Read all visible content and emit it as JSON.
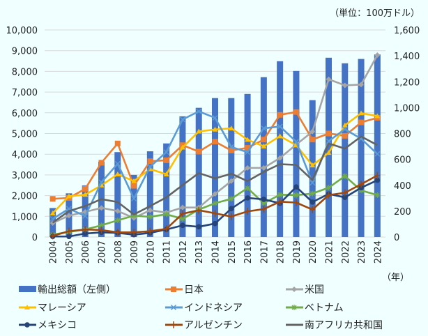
{
  "chart_data": {
    "type": "bar+line",
    "unit_label": "（単位：100万ドル）",
    "xlabel": "（年）",
    "categories": [
      "2004",
      "2005",
      "2006",
      "2007",
      "2008",
      "2009",
      "2010",
      "2011",
      "2012",
      "2013",
      "2014",
      "2015",
      "2016",
      "2017",
      "2018",
      "2019",
      "2020",
      "2021",
      "2022",
      "2023",
      "2024"
    ],
    "left_axis": {
      "range": [
        0,
        10000
      ],
      "ticks": [
        "0",
        "1,000",
        "2,000",
        "3,000",
        "4,000",
        "5,000",
        "6,000",
        "7,000",
        "8,000",
        "9,000",
        "10,000"
      ]
    },
    "right_axis": {
      "range": [
        0,
        1600
      ],
      "ticks": [
        "0",
        "200",
        "400",
        "600",
        "800",
        "1,000",
        "1,200",
        "1,400",
        "1,600"
      ]
    },
    "grid": true,
    "legend_position": "bottom",
    "bar_series": {
      "name": "輸出総額（左側）",
      "axis": "left",
      "color": "#4472c4",
      "values": [
        1400,
        2110,
        2490,
        3640,
        4100,
        3000,
        4140,
        4520,
        5830,
        6240,
        6710,
        6710,
        6910,
        7720,
        8490,
        8020,
        6610,
        8660,
        8390,
        8600,
        8820
      ]
    },
    "series": [
      {
        "name": "日本",
        "color": "#ed7d31",
        "marker": "square",
        "values": [
          295,
          302,
          372,
          574,
          723,
          396,
          586,
          593,
          710,
          660,
          737,
          669,
          689,
          753,
          944,
          966,
          753,
          800,
          782,
          886,
          921
        ]
      },
      {
        "name": "米国",
        "color": "#a5a5a5",
        "marker": "diamond",
        "values": [
          108,
          165,
          194,
          225,
          201,
          147,
          207,
          189,
          228,
          228,
          333,
          432,
          534,
          534,
          611,
          714,
          815,
          1219,
          1172,
          1178,
          1406
        ]
      },
      {
        "name": "マレーシア",
        "color": "#ffc000",
        "marker": "triangle",
        "values": [
          183,
          315,
          327,
          399,
          485,
          432,
          525,
          485,
          692,
          816,
          831,
          840,
          752,
          701,
          779,
          710,
          554,
          651,
          863,
          957,
          935
        ]
      },
      {
        "name": "インドネシア",
        "color": "#5b9bd5",
        "marker": "x",
        "values": [
          140,
          219,
          162,
          423,
          566,
          297,
          543,
          656,
          908,
          971,
          921,
          696,
          656,
          840,
          854,
          737,
          419,
          741,
          833,
          759,
          642
        ]
      },
      {
        "name": "ベトナム",
        "color": "#70ad47",
        "marker": "star",
        "values": [
          18,
          40,
          58,
          90,
          129,
          165,
          156,
          176,
          140,
          212,
          261,
          295,
          378,
          261,
          327,
          324,
          336,
          381,
          471,
          360,
          324
        ]
      },
      {
        "name": "メキシコ",
        "color": "#264478",
        "marker": "circle",
        "values": [
          4,
          4,
          27,
          36,
          32,
          18,
          32,
          58,
          90,
          79,
          104,
          219,
          302,
          291,
          261,
          387,
          270,
          333,
          306,
          381,
          439
        ]
      },
      {
        "name": "アルゼンチン",
        "color": "#9e480e",
        "marker": "plus",
        "values": [
          9,
          45,
          58,
          54,
          36,
          36,
          45,
          63,
          180,
          207,
          183,
          158,
          198,
          216,
          273,
          266,
          212,
          324,
          342,
          408,
          476
        ]
      },
      {
        "name": "南アフリカ共和国",
        "color": "#636363",
        "marker": "none",
        "values": [
          111,
          201,
          239,
          293,
          270,
          174,
          239,
          306,
          401,
          494,
          453,
          489,
          432,
          503,
          563,
          557,
          440,
          723,
          683,
          777,
          710
        ]
      }
    ]
  }
}
